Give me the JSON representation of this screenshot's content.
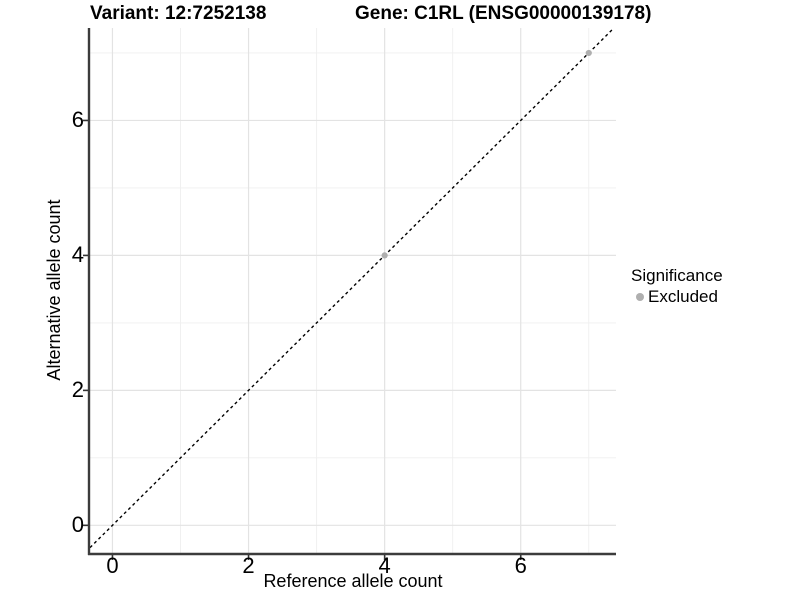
{
  "titles": {
    "variant": "Variant: 12:7252138",
    "gene": "Gene: C1RL (ENSG00000139178)"
  },
  "legend": {
    "title": "Significance",
    "items": [
      {
        "label": "Excluded",
        "color": "#afafaf"
      }
    ]
  },
  "colors": {
    "point_excluded": "#afafaf",
    "reference_line": "#000000",
    "axis_line": "#3c3c3c",
    "tick_mark": "#333333",
    "grid_major": "#e3e3e3",
    "grid_minor": "#efefef",
    "text": "#000000",
    "background": "#ffffff"
  },
  "chart_data": {
    "type": "scatter",
    "title_left": "Variant: 12:7252138",
    "title_right": "Gene: C1RL (ENSG00000139178)",
    "xlabel": "Reference allele count",
    "ylabel": "Alternative allele count",
    "xlim": [
      -0.33,
      7.4
    ],
    "ylim": [
      -0.41,
      7.37
    ],
    "x_ticks": [
      0,
      2,
      4,
      6
    ],
    "y_ticks": [
      0,
      2,
      4,
      6
    ],
    "minor_ticks": [
      1,
      3,
      5,
      7
    ],
    "grid": true,
    "legend_position": "right",
    "legend_title": "Significance",
    "series": [
      {
        "name": "Excluded",
        "color": "#afafaf",
        "points": [
          {
            "x": 4,
            "y": 4
          },
          {
            "x": 7,
            "y": 7
          }
        ]
      }
    ],
    "reference_line": {
      "slope": 1,
      "intercept": 0,
      "style": "dashed",
      "color": "#000000"
    }
  }
}
